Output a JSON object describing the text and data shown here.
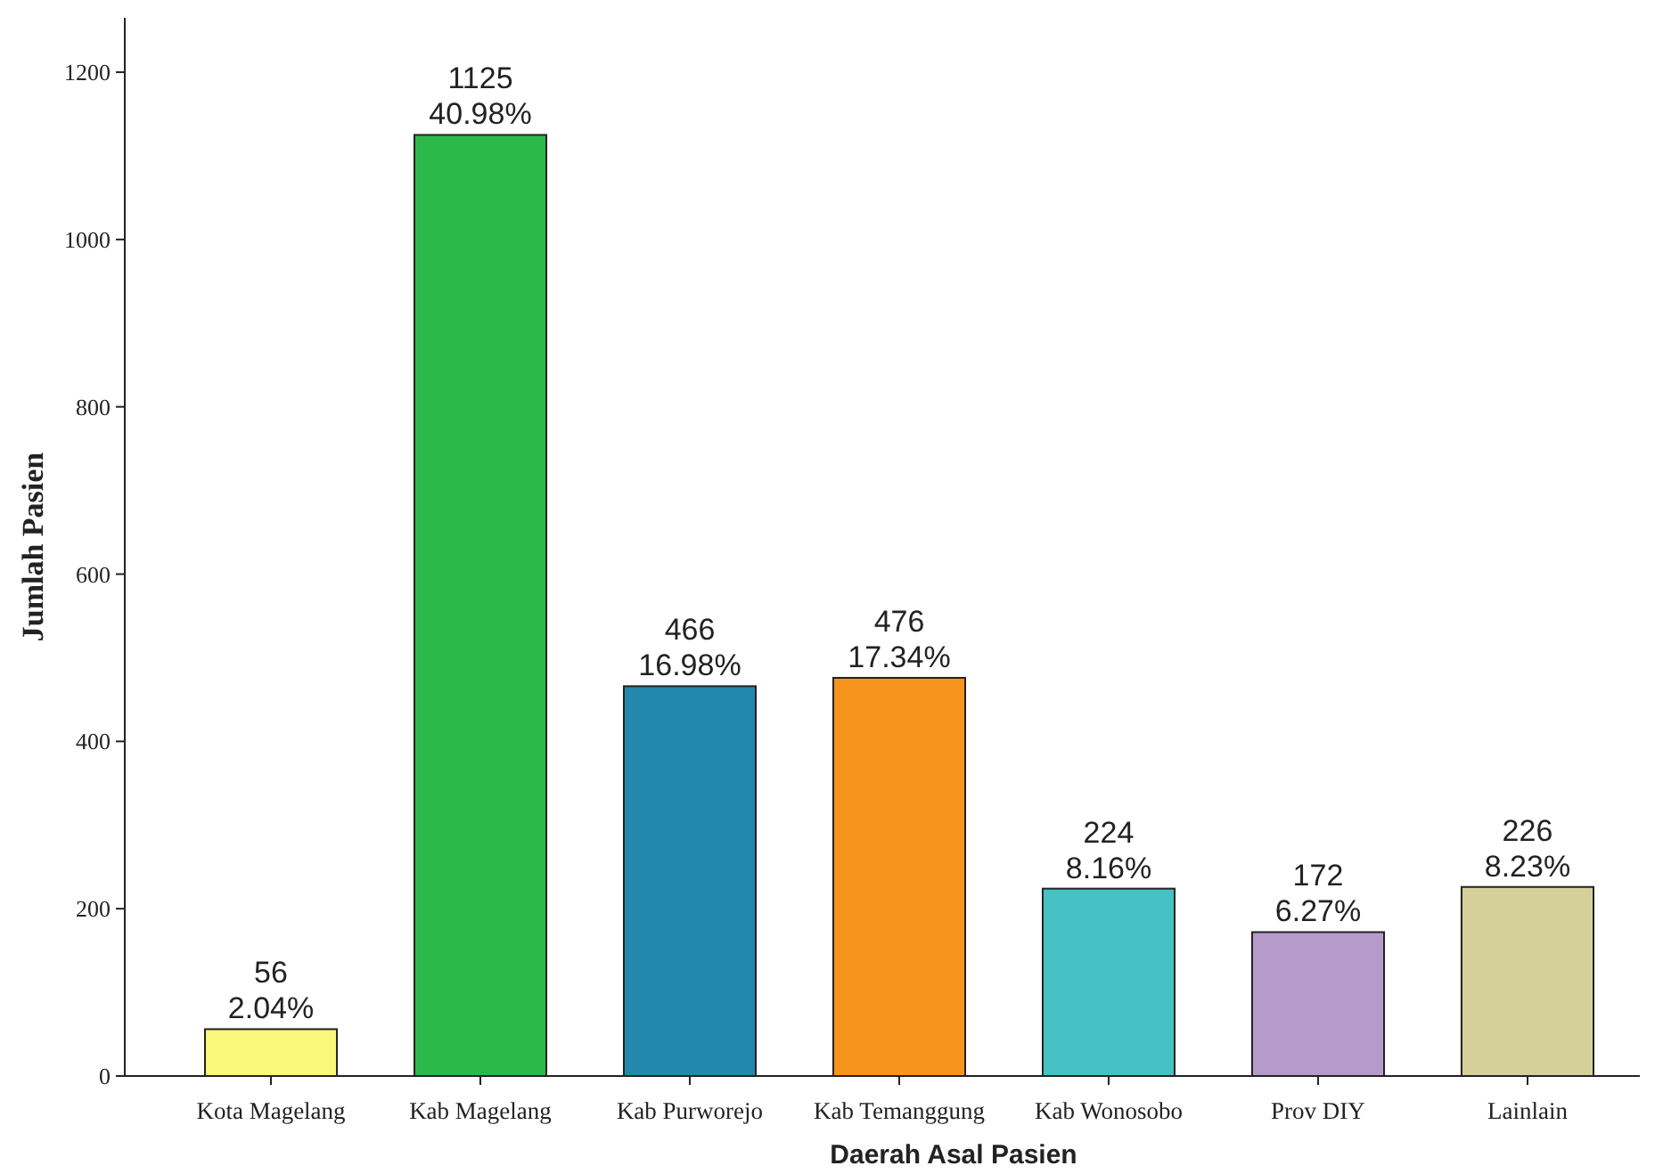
{
  "chart_data": {
    "type": "bar",
    "xlabel": "Daerah Asal Pasien",
    "ylabel": "Jumlah Pasien",
    "categories": [
      "Kota Magelang",
      "Kab Magelang",
      "Kab Purworejo",
      "Kab Temanggung",
      "Kab Wonosobo",
      "Prov DIY",
      "Lainlain"
    ],
    "values": [
      56,
      1125,
      466,
      476,
      224,
      172,
      226
    ],
    "colors": [
      "#fbf77a",
      "#2db84a",
      "#2388ae",
      "#f7941e",
      "#46c1c4",
      "#b69bca",
      "#d5d09b"
    ],
    "value_labels": [
      "56\n2.04%",
      "1125\n40.98%",
      "466\n16.98%",
      "476\n17.34%",
      "224\n8.16%",
      "172\n6.27%",
      "226\n8.23%"
    ],
    "ylim": [
      0,
      1265
    ],
    "yticks": [
      0,
      200,
      400,
      600,
      800,
      1000,
      1200
    ],
    "grid": false
  }
}
